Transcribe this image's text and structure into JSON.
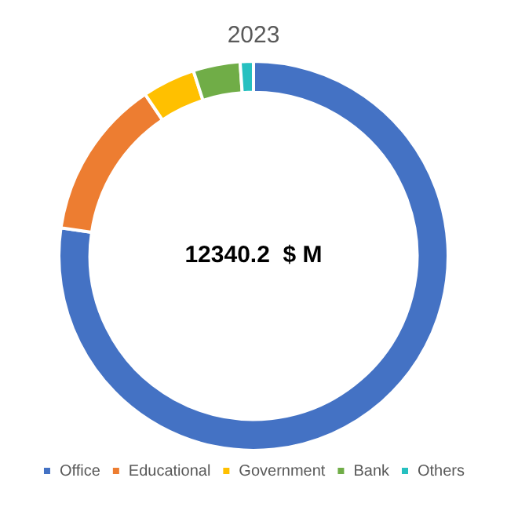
{
  "chart_data": {
    "type": "donut",
    "title": "2023",
    "categories": [
      "Office",
      "Educational",
      "Government",
      "Bank",
      "Others"
    ],
    "values": [
      77.3,
      13.3,
      4.4,
      3.9,
      1.1
    ],
    "colors": [
      "#4472c4",
      "#ed7d31",
      "#ffc000",
      "#70ad47",
      "#26c0c0"
    ],
    "annotations": [
      "12340.2  $ M"
    ],
    "legend": "bottom"
  }
}
